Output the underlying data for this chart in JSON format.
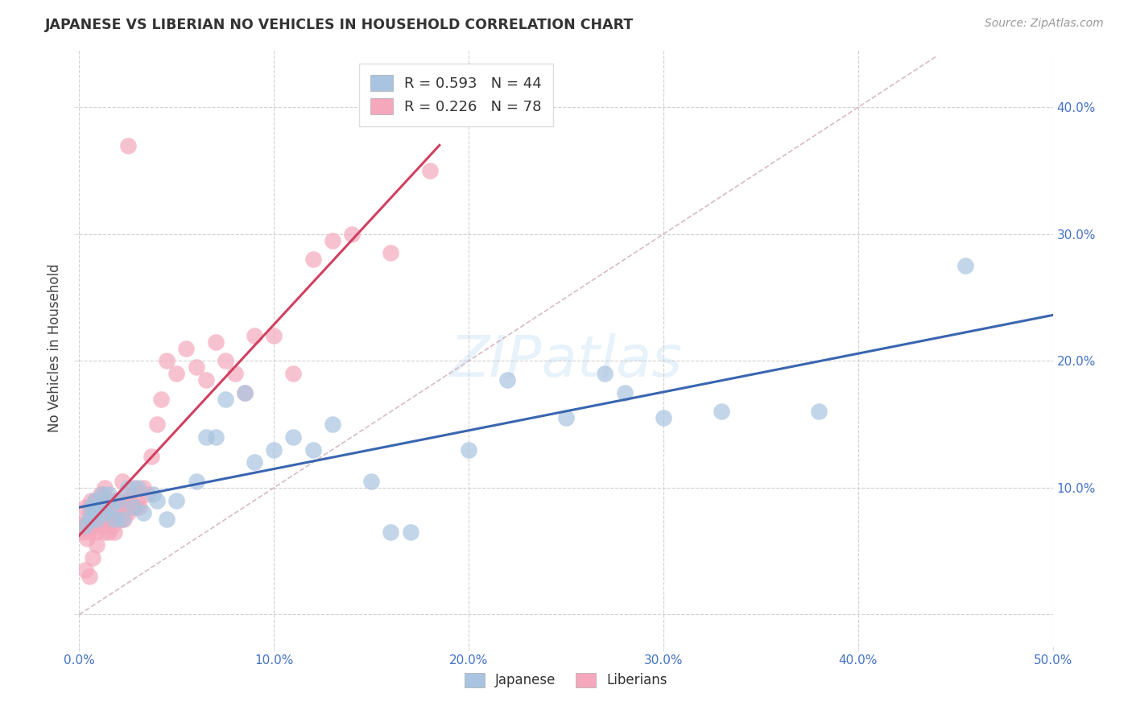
{
  "title": "JAPANESE VS LIBERIAN NO VEHICLES IN HOUSEHOLD CORRELATION CHART",
  "source": "Source: ZipAtlas.com",
  "ylabel": "No Vehicles in Household",
  "xlim": [
    0.0,
    0.5
  ],
  "ylim": [
    -0.025,
    0.445
  ],
  "xticks": [
    0.0,
    0.1,
    0.2,
    0.3,
    0.4,
    0.5
  ],
  "yticks": [
    0.0,
    0.1,
    0.2,
    0.3,
    0.4
  ],
  "xtick_labels": [
    "0.0%",
    "10.0%",
    "20.0%",
    "30.0%",
    "40.0%",
    "50.0%"
  ],
  "ytick_labels_right": [
    "",
    "10.0%",
    "20.0%",
    "30.0%",
    "40.0%"
  ],
  "grid_color": "#cccccc",
  "bg_color": "#ffffff",
  "japanese_scatter_color": "#a8c4e0",
  "liberian_scatter_color": "#f5a8bc",
  "japanese_line_color": "#3a65b0",
  "liberian_line_color": "#d04060",
  "diagonal_color": "#d0b0b8",
  "japanese_R": "0.593",
  "japanese_N": "44",
  "liberian_R": "0.226",
  "liberian_N": "78",
  "legend_R_color": "#4472c4",
  "legend_N_color": "#cc3300",
  "japanese_x": [
    0.003,
    0.005,
    0.006,
    0.007,
    0.008,
    0.009,
    0.01,
    0.012,
    0.013,
    0.015,
    0.016,
    0.018,
    0.02,
    0.022,
    0.025,
    0.028,
    0.03,
    0.033,
    0.038,
    0.04,
    0.045,
    0.05,
    0.06,
    0.065,
    0.07,
    0.075,
    0.085,
    0.09,
    0.1,
    0.11,
    0.12,
    0.13,
    0.15,
    0.17,
    0.2,
    0.22,
    0.25,
    0.27,
    0.3,
    0.33,
    0.38,
    0.455,
    0.16,
    0.28
  ],
  "japanese_y": [
    0.07,
    0.075,
    0.085,
    0.08,
    0.09,
    0.075,
    0.085,
    0.095,
    0.08,
    0.095,
    0.085,
    0.075,
    0.09,
    0.075,
    0.1,
    0.085,
    0.1,
    0.08,
    0.095,
    0.09,
    0.075,
    0.09,
    0.105,
    0.14,
    0.14,
    0.17,
    0.175,
    0.12,
    0.13,
    0.14,
    0.13,
    0.15,
    0.105,
    0.065,
    0.13,
    0.185,
    0.155,
    0.19,
    0.155,
    0.16,
    0.16,
    0.275,
    0.065,
    0.175
  ],
  "liberian_x": [
    0.001,
    0.002,
    0.003,
    0.003,
    0.004,
    0.005,
    0.005,
    0.006,
    0.006,
    0.007,
    0.007,
    0.008,
    0.008,
    0.009,
    0.009,
    0.01,
    0.01,
    0.011,
    0.011,
    0.012,
    0.012,
    0.013,
    0.013,
    0.013,
    0.014,
    0.014,
    0.015,
    0.015,
    0.016,
    0.016,
    0.017,
    0.017,
    0.018,
    0.018,
    0.019,
    0.02,
    0.02,
    0.021,
    0.022,
    0.022,
    0.023,
    0.024,
    0.025,
    0.025,
    0.026,
    0.027,
    0.028,
    0.029,
    0.03,
    0.031,
    0.033,
    0.035,
    0.037,
    0.04,
    0.042,
    0.045,
    0.05,
    0.055,
    0.06,
    0.065,
    0.07,
    0.075,
    0.08,
    0.085,
    0.09,
    0.1,
    0.11,
    0.12,
    0.13,
    0.14,
    0.16,
    0.18,
    0.003,
    0.005,
    0.007,
    0.009,
    0.013,
    0.025
  ],
  "liberian_y": [
    0.07,
    0.065,
    0.075,
    0.085,
    0.06,
    0.065,
    0.085,
    0.075,
    0.09,
    0.07,
    0.085,
    0.07,
    0.09,
    0.065,
    0.08,
    0.075,
    0.09,
    0.08,
    0.095,
    0.07,
    0.085,
    0.075,
    0.09,
    0.1,
    0.075,
    0.085,
    0.065,
    0.09,
    0.075,
    0.085,
    0.07,
    0.085,
    0.065,
    0.09,
    0.075,
    0.08,
    0.09,
    0.075,
    0.085,
    0.105,
    0.075,
    0.085,
    0.08,
    0.095,
    0.09,
    0.085,
    0.1,
    0.085,
    0.09,
    0.085,
    0.1,
    0.095,
    0.125,
    0.15,
    0.17,
    0.2,
    0.19,
    0.21,
    0.195,
    0.185,
    0.215,
    0.2,
    0.19,
    0.175,
    0.22,
    0.22,
    0.19,
    0.28,
    0.295,
    0.3,
    0.285,
    0.35,
    0.035,
    0.03,
    0.045,
    0.055,
    0.065,
    0.37
  ]
}
